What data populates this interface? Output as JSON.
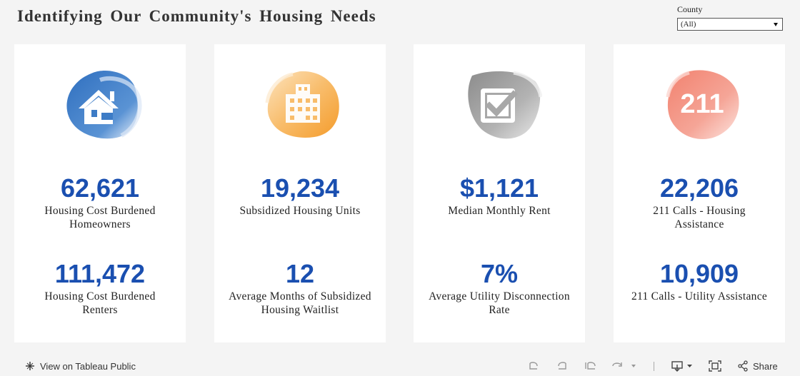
{
  "header": {
    "title": "Identifying Our Community's Housing Needs"
  },
  "filter": {
    "label": "County",
    "value": "(All)"
  },
  "cards": [
    {
      "icon": "house-icon",
      "color": "#3d7cc6",
      "metric1": {
        "value": "62,621",
        "label": "Housing Cost Burdened Homeowners"
      },
      "metric2": {
        "value": "111,472",
        "label": "Housing Cost Burdened Renters"
      }
    },
    {
      "icon": "building-icon",
      "color": "#f5a947",
      "metric1": {
        "value": "19,234",
        "label": "Subsidized Housing Units"
      },
      "metric2": {
        "value": "12",
        "label": "Average Months of Subsidized Housing Waitlist"
      }
    },
    {
      "icon": "checkbox-icon",
      "color": "#a3a3a3",
      "metric1": {
        "value": "$1,121",
        "label": "Median Monthly Rent"
      },
      "metric2": {
        "value": "7%",
        "label": "Average Utility Disconnection Rate"
      }
    },
    {
      "icon": "211-icon",
      "color": "#ef6a5c",
      "icon_text": "211",
      "metric1": {
        "value": "22,206",
        "label": "211 Calls - Housing Assistance"
      },
      "metric2": {
        "value": "10,909",
        "label": "211 Calls - Utility Assistance"
      }
    }
  ],
  "toolbar": {
    "view_label": "View on Tableau Public",
    "share_label": "Share"
  }
}
